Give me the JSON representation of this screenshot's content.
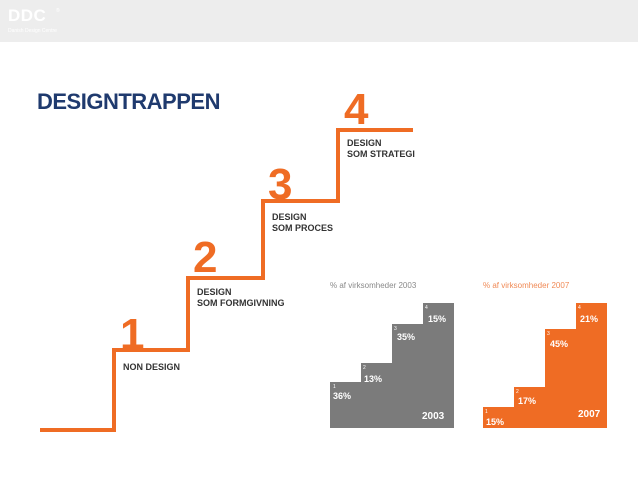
{
  "header": {
    "logo_text": "DDC",
    "logo_reg": "®",
    "logo_subtitle": "Danish Design Centre"
  },
  "title": "DESIGNTRAPPEN",
  "staircase": {
    "color": "#ef6c24",
    "steps": [
      {
        "number": "1",
        "line1": "NON DESIGN",
        "line2": ""
      },
      {
        "number": "2",
        "line1": "DESIGN",
        "line2": "SOM FORMGIVNING"
      },
      {
        "number": "3",
        "line1": "DESIGN",
        "line2": "SOM PROCES"
      },
      {
        "number": "4",
        "line1": "DESIGN",
        "line2": "SOM STRATEGI"
      }
    ]
  },
  "charts": [
    {
      "caption": "% af virksomheder 2003",
      "year": "2003",
      "color": "#7b7b7b",
      "steps": [
        {
          "index": "1",
          "label": "36%"
        },
        {
          "index": "2",
          "label": "13%"
        },
        {
          "index": "3",
          "label": "35%"
        },
        {
          "index": "4",
          "label": "15%"
        }
      ]
    },
    {
      "caption": "% af virksomheder 2007",
      "year": "2007",
      "color": "#ef6c24",
      "steps": [
        {
          "index": "1",
          "label": "15%"
        },
        {
          "index": "2",
          "label": "17%"
        },
        {
          "index": "3",
          "label": "45%"
        },
        {
          "index": "4",
          "label": "21%"
        }
      ]
    }
  ]
}
